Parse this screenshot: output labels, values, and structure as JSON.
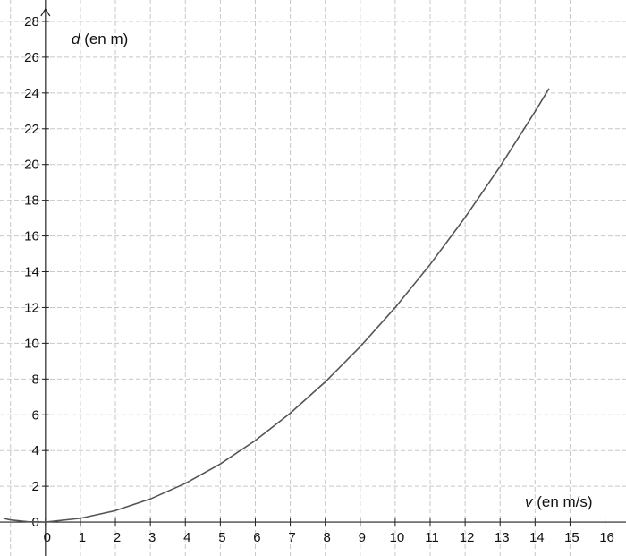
{
  "chart_data": {
    "type": "line",
    "xlabel_var": "v",
    "xlabel_unit": " (en m/s)",
    "ylabel_var": "d",
    "ylabel_unit": " (en m)",
    "xlim": [
      -1.3,
      16.6
    ],
    "ylim": [
      -1.9,
      29.2
    ],
    "x_ticks": [
      0,
      1,
      2,
      3,
      4,
      5,
      6,
      7,
      8,
      9,
      10,
      11,
      12,
      13,
      14,
      15,
      16
    ],
    "y_ticks": [
      0,
      2,
      4,
      6,
      8,
      10,
      12,
      14,
      16,
      18,
      20,
      22,
      24,
      26,
      28
    ],
    "grid": true,
    "series": [
      {
        "x": [
          -1.2,
          -1,
          -0.5,
          0,
          1,
          2,
          3,
          4,
          5,
          6,
          7,
          8,
          9,
          10,
          11,
          12,
          13,
          14,
          14.4
        ],
        "values": [
          0.21,
          0.12,
          0.02,
          0,
          0.21,
          0.64,
          1.29,
          2.16,
          3.25,
          4.56,
          6.09,
          7.84,
          9.81,
          12.0,
          14.41,
          17.04,
          19.89,
          22.96,
          24.25
        ]
      }
    ]
  }
}
